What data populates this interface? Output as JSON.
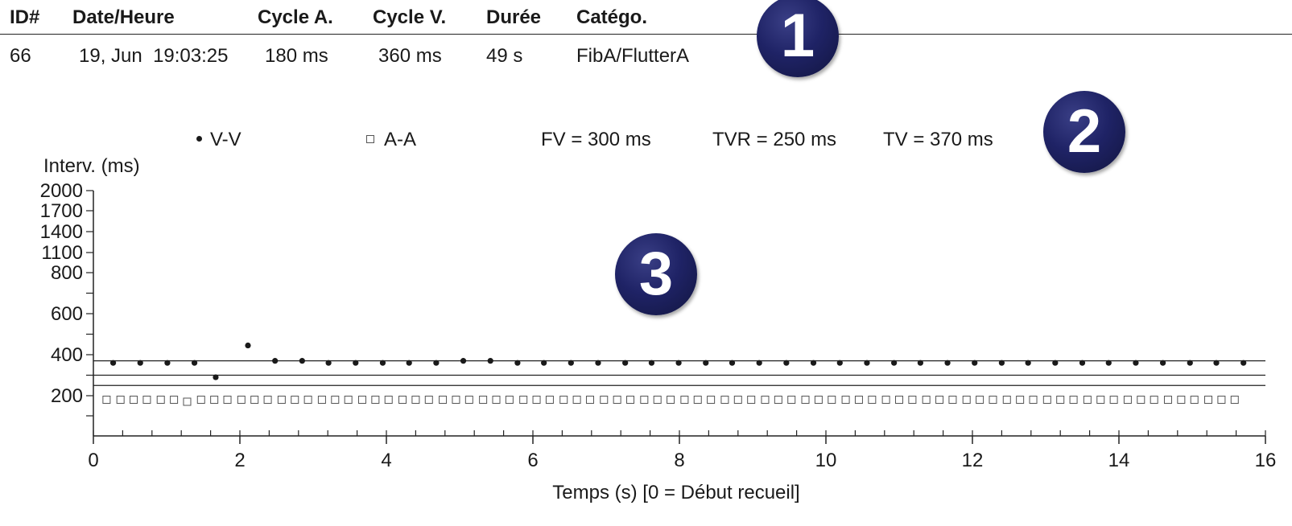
{
  "table": {
    "headers": [
      "ID#",
      "Date/Heure",
      "Cycle A.",
      "Cycle V.",
      "Durée",
      "Catégo."
    ],
    "row": [
      "66",
      "19, Jun  19:03:25",
      "180 ms",
      "360 ms",
      "49 s",
      "FibA/FlutterA"
    ]
  },
  "legend": {
    "vv": "V-V",
    "aa": "A-A",
    "fv": "FV = 300 ms",
    "tvr": "TVR = 250 ms",
    "tv": "TV = 370 ms"
  },
  "badges": [
    "1",
    "2",
    "3"
  ],
  "chart_data": {
    "type": "scatter",
    "ylabel": "Interv. (ms)",
    "xlabel": "Temps (s)   [0 = Début recueil]",
    "xlim": [
      0,
      16
    ],
    "ylim": [
      0,
      2000
    ],
    "x_ticks": [
      0,
      2,
      4,
      6,
      8,
      10,
      12,
      14,
      16
    ],
    "y_ticks": [
      200,
      400,
      600,
      800,
      1100,
      1400,
      1700,
      2000
    ],
    "thresholds": [
      {
        "label": "TV",
        "value": 370
      },
      {
        "label": "FV",
        "value": 300
      },
      {
        "label": "TVR",
        "value": 250
      }
    ],
    "series": [
      {
        "name": "V-V",
        "marker": "dot",
        "x": [
          0.27,
          0.64,
          1.01,
          1.38,
          1.67,
          2.11,
          2.48,
          2.85,
          3.21,
          3.58,
          3.95,
          4.31,
          4.68,
          5.05,
          5.42,
          5.79,
          6.15,
          6.52,
          6.89,
          7.26,
          7.62,
          7.99,
          8.36,
          8.72,
          9.09,
          9.46,
          9.83,
          10.19,
          10.56,
          10.93,
          11.29,
          11.66,
          12.03,
          12.4,
          12.76,
          13.13,
          13.5,
          13.86,
          14.23,
          14.6,
          14.97,
          15.33,
          15.7
        ],
        "y": [
          360,
          360,
          360,
          360,
          290,
          445,
          370,
          370,
          360,
          360,
          360,
          360,
          360,
          370,
          370,
          360,
          360,
          360,
          360,
          360,
          360,
          360,
          360,
          360,
          360,
          360,
          360,
          360,
          360,
          360,
          360,
          360,
          360,
          360,
          360,
          360,
          360,
          360,
          360,
          360,
          360,
          360,
          360
        ]
      },
      {
        "name": "A-A",
        "marker": "square",
        "x": [
          0.18,
          0.37,
          0.55,
          0.73,
          0.92,
          1.1,
          1.28,
          1.47,
          1.65,
          1.83,
          2.02,
          2.2,
          2.38,
          2.57,
          2.75,
          2.93,
          3.12,
          3.3,
          3.48,
          3.67,
          3.85,
          4.03,
          4.22,
          4.4,
          4.58,
          4.77,
          4.95,
          5.13,
          5.32,
          5.5,
          5.68,
          5.87,
          6.05,
          6.23,
          6.42,
          6.6,
          6.78,
          6.97,
          7.15,
          7.33,
          7.52,
          7.7,
          7.88,
          8.07,
          8.25,
          8.43,
          8.62,
          8.8,
          8.98,
          9.17,
          9.35,
          9.53,
          9.72,
          9.9,
          10.08,
          10.27,
          10.45,
          10.63,
          10.82,
          11.0,
          11.18,
          11.37,
          11.55,
          11.73,
          11.92,
          12.1,
          12.28,
          12.47,
          12.65,
          12.83,
          13.02,
          13.2,
          13.38,
          13.57,
          13.75,
          13.93,
          14.12,
          14.3,
          14.48,
          14.67,
          14.85,
          15.03,
          15.22,
          15.4,
          15.58
        ],
        "y": [
          180,
          180,
          180,
          180,
          180,
          180,
          170,
          180,
          180,
          180,
          180,
          180,
          180,
          180,
          180,
          180,
          180,
          180,
          180,
          180,
          180,
          180,
          180,
          180,
          180,
          180,
          180,
          180,
          180,
          180,
          180,
          180,
          180,
          180,
          180,
          180,
          180,
          180,
          180,
          180,
          180,
          180,
          180,
          180,
          180,
          180,
          180,
          180,
          180,
          180,
          180,
          180,
          180,
          180,
          180,
          180,
          180,
          180,
          180,
          180,
          180,
          180,
          180,
          180,
          180,
          180,
          180,
          180,
          180,
          180,
          180,
          180,
          180,
          180,
          180,
          180,
          180,
          180,
          180,
          180,
          180,
          180,
          180,
          180,
          180
        ]
      }
    ]
  }
}
